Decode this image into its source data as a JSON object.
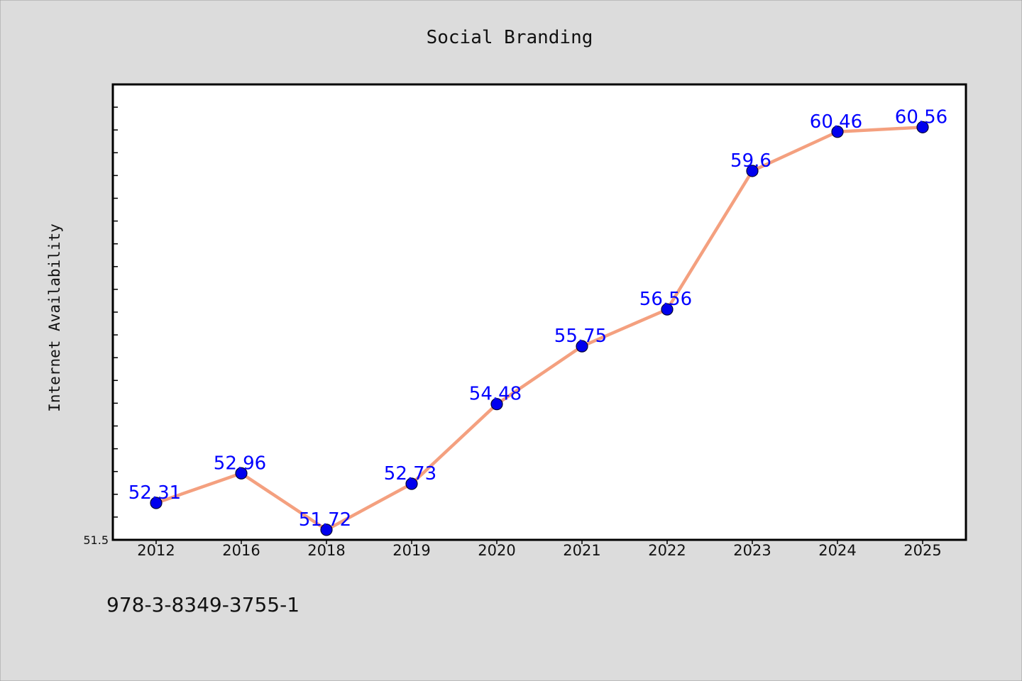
{
  "chart_data": {
    "type": "line",
    "title": "Social Branding",
    "xlabel": "",
    "ylabel": "Internet Availability",
    "categories": [
      "2012",
      "2016",
      "2018",
      "2019",
      "2020",
      "2021",
      "2022",
      "2023",
      "2024",
      "2025"
    ],
    "series": [
      {
        "values": [
          52.31,
          52.96,
          51.72,
          52.73,
          54.48,
          55.75,
          56.56,
          59.6,
          60.46,
          60.56
        ]
      }
    ],
    "data_labels": [
      "52.31",
      "52.96",
      "51.72",
      "52.73",
      "54.48",
      "55.75",
      "56.56",
      "59.6",
      "60.46",
      "60.56"
    ],
    "ylim": [
      51.5,
      61.5
    ],
    "yticks_labeled": [
      "51.5"
    ],
    "grid": false,
    "legend": "none",
    "colors": {
      "line": "#f4a07f",
      "marker": "#0000ee",
      "data_label": "#0000ff",
      "background": "#dcdcdc",
      "plot_area": "#ffffff"
    }
  },
  "footer_text": "978-3-8349-3755-1"
}
